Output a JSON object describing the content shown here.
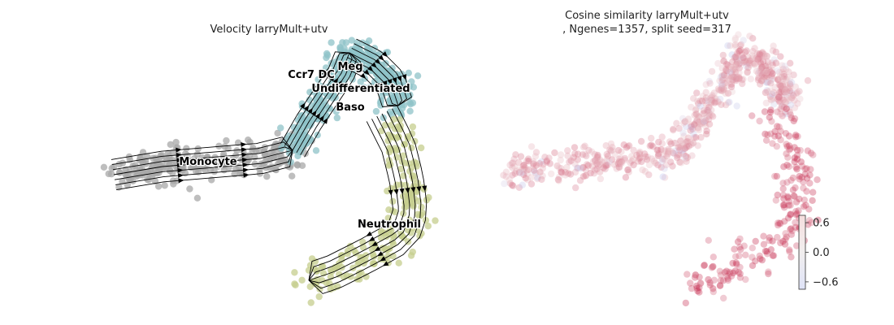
{
  "figure": {
    "left_title": "Velocity larryMult+utv",
    "right_title_line1": "Cosine similarity larryMult+utv",
    "right_title_line2": ", Ngenes=1357, split seed=317"
  },
  "chart_data": [
    {
      "type": "scatter",
      "subtype": "velocity-streamplot",
      "title": "Velocity larryMult+utv",
      "axes_visible": false,
      "grid": false,
      "legend": "on-data",
      "clusters": [
        {
          "name": "Meg",
          "color": "#8fc3c8"
        },
        {
          "name": "Ccr7 DC",
          "color": "#8fc3c8"
        },
        {
          "name": "Undifferentiated",
          "color": "#8fc3c8"
        },
        {
          "name": "Baso",
          "color": "#8fc3c8"
        },
        {
          "name": "Monocyte",
          "color": "#a8a8a8"
        },
        {
          "name": "Neutrophil",
          "color": "#c5cd8e"
        }
      ],
      "stream_color": "#000000"
    },
    {
      "type": "scatter",
      "title": "Cosine similarity larryMult+utv\n, Ngenes=1357, split seed=317",
      "axes_visible": false,
      "grid": false,
      "colormap": "coolwarm",
      "colorbar": {
        "ticks": [
          "0.6",
          "0.0",
          "−0.6"
        ],
        "tick_values": [
          0.6,
          0.0,
          -0.6
        ],
        "range": [
          -0.75,
          0.75
        ]
      },
      "colors": {
        "high": "#c0143c",
        "mid": "#f2e4e4",
        "low": "#a9b7f0"
      }
    }
  ]
}
